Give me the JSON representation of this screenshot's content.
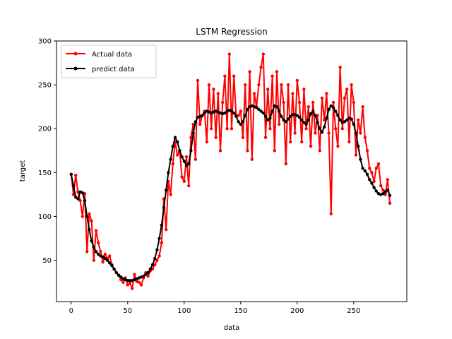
{
  "chart_data": {
    "type": "line",
    "title": "LSTM Regression",
    "xlabel": "data",
    "ylabel": "target",
    "xlim": [
      -13,
      297
    ],
    "ylim": [
      3,
      300
    ],
    "xticks": [
      0,
      50,
      100,
      150,
      200,
      250
    ],
    "yticks": [
      50,
      100,
      150,
      200,
      250,
      300
    ],
    "grid": false,
    "legend_position": "top-left",
    "series": [
      {
        "name": "Actual data",
        "color": "#ff0000",
        "marker": "dot",
        "x": [
          0,
          2,
          4,
          6,
          8,
          10,
          12,
          14,
          16,
          18,
          20,
          22,
          24,
          26,
          28,
          30,
          32,
          34,
          36,
          38,
          40,
          42,
          44,
          46,
          48,
          50,
          52,
          54,
          56,
          58,
          60,
          62,
          64,
          66,
          68,
          70,
          72,
          74,
          76,
          78,
          80,
          82,
          84,
          86,
          88,
          90,
          92,
          94,
          96,
          98,
          100,
          102,
          104,
          106,
          108,
          110,
          112,
          114,
          116,
          118,
          120,
          122,
          124,
          126,
          128,
          130,
          132,
          134,
          136,
          138,
          140,
          142,
          144,
          146,
          148,
          150,
          152,
          154,
          156,
          158,
          160,
          162,
          164,
          166,
          168,
          170,
          172,
          174,
          176,
          178,
          180,
          182,
          184,
          186,
          188,
          190,
          192,
          194,
          196,
          198,
          200,
          202,
          204,
          206,
          208,
          210,
          212,
          214,
          216,
          218,
          220,
          222,
          224,
          226,
          228,
          230,
          232,
          234,
          236,
          238,
          240,
          242,
          244,
          246,
          248,
          250,
          252,
          254,
          256,
          258,
          260,
          262,
          264,
          266,
          268,
          270,
          272,
          274,
          276,
          278,
          280,
          282
        ],
        "values": [
          148,
          125,
          147,
          128,
          118,
          100,
          126,
          60,
          103,
          95,
          50,
          84,
          70,
          60,
          48,
          57,
          52,
          55,
          45,
          40,
          36,
          33,
          28,
          25,
          30,
          22,
          24,
          18,
          34,
          26,
          25,
          22,
          30,
          36,
          32,
          38,
          40,
          45,
          50,
          55,
          70,
          120,
          85,
          140,
          125,
          160,
          185,
          170,
          175,
          145,
          140,
          168,
          135,
          190,
          205,
          165,
          255,
          205,
          215,
          220,
          185,
          250,
          200,
          245,
          190,
          240,
          175,
          230,
          260,
          200,
          285,
          200,
          260,
          215,
          215,
          220,
          190,
          250,
          175,
          265,
          165,
          240,
          225,
          250,
          270,
          285,
          190,
          245,
          200,
          260,
          175,
          265,
          205,
          250,
          230,
          160,
          250,
          185,
          240,
          195,
          255,
          230,
          185,
          245,
          200,
          225,
          180,
          230,
          195,
          215,
          175,
          235,
          210,
          240,
          195,
          103,
          230,
          200,
          180,
          270,
          200,
          235,
          245,
          185,
          250,
          230,
          170,
          210,
          195,
          225,
          190,
          175,
          155,
          150,
          140,
          155,
          160,
          135,
          130,
          125,
          142,
          115
        ]
      },
      {
        "name": "predict data",
        "color": "#000000",
        "marker": "dot",
        "x": [
          0,
          2,
          4,
          6,
          8,
          10,
          12,
          14,
          16,
          18,
          20,
          22,
          24,
          26,
          28,
          30,
          32,
          34,
          36,
          38,
          40,
          42,
          44,
          46,
          48,
          50,
          52,
          54,
          56,
          58,
          60,
          62,
          64,
          66,
          68,
          70,
          72,
          74,
          76,
          78,
          80,
          82,
          84,
          86,
          88,
          90,
          92,
          94,
          96,
          98,
          100,
          102,
          104,
          106,
          108,
          110,
          112,
          114,
          116,
          118,
          120,
          122,
          124,
          126,
          128,
          130,
          132,
          134,
          136,
          138,
          140,
          142,
          144,
          146,
          148,
          150,
          152,
          154,
          156,
          158,
          160,
          162,
          164,
          166,
          168,
          170,
          172,
          174,
          176,
          178,
          180,
          182,
          184,
          186,
          188,
          190,
          192,
          194,
          196,
          198,
          200,
          202,
          204,
          206,
          208,
          210,
          212,
          214,
          216,
          218,
          220,
          222,
          224,
          226,
          228,
          230,
          232,
          234,
          236,
          238,
          240,
          242,
          244,
          246,
          248,
          250,
          252,
          254,
          256,
          258,
          260,
          262,
          264,
          266,
          268,
          270,
          272,
          274,
          276,
          278,
          280,
          282
        ],
        "values": [
          148,
          135,
          122,
          120,
          128,
          127,
          118,
          100,
          85,
          72,
          65,
          60,
          57,
          55,
          54,
          52,
          50,
          47,
          44,
          40,
          36,
          33,
          31,
          29,
          28,
          27,
          27,
          27,
          28,
          29,
          30,
          31,
          32,
          34,
          36,
          40,
          45,
          52,
          62,
          75,
          90,
          110,
          130,
          150,
          165,
          180,
          190,
          185,
          175,
          168,
          163,
          158,
          160,
          175,
          195,
          208,
          213,
          214,
          215,
          218,
          220,
          219,
          218,
          219,
          220,
          219,
          218,
          217,
          218,
          220,
          221,
          220,
          218,
          214,
          208,
          205,
          208,
          215,
          222,
          225,
          226,
          225,
          224,
          222,
          220,
          218,
          214,
          210,
          212,
          220,
          226,
          225,
          220,
          214,
          210,
          208,
          211,
          214,
          216,
          216,
          215,
          213,
          210,
          207,
          205,
          210,
          217,
          220,
          215,
          207,
          200,
          196,
          202,
          212,
          222,
          226,
          224,
          220,
          215,
          210,
          207,
          208,
          210,
          212,
          211,
          205,
          195,
          180,
          165,
          155,
          152,
          148,
          142,
          138,
          133,
          129,
          126,
          125,
          126,
          128,
          130,
          124
        ]
      }
    ]
  }
}
